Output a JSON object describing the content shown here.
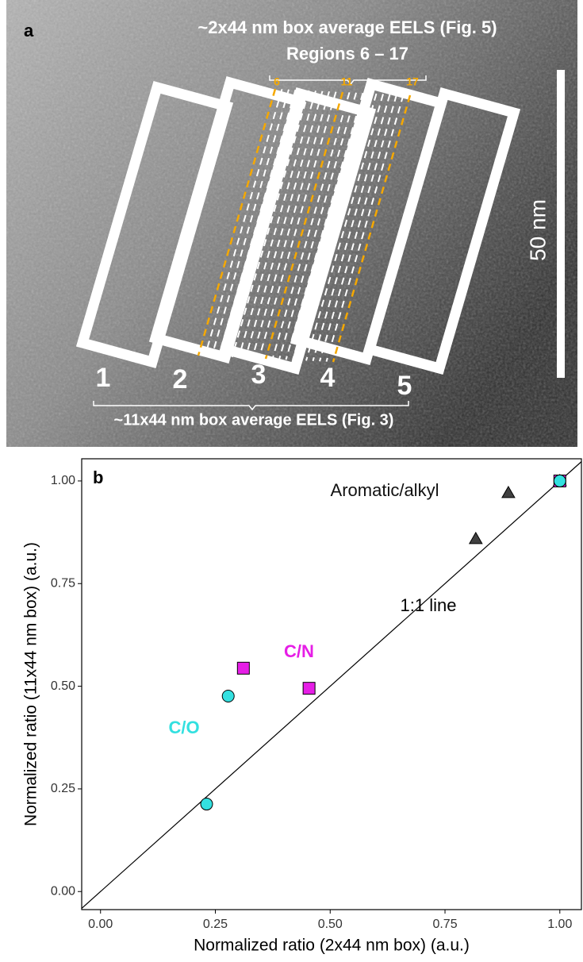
{
  "panel_a": {
    "label": "a",
    "top_caption": "~2x44 nm box average EELS (Fig. 5)",
    "top_subcaption": "Regions 6 – 17",
    "region_markers": [
      "6",
      "11",
      "17"
    ],
    "box_labels": [
      "1",
      "2",
      "3",
      "4",
      "5"
    ],
    "bottom_caption": "~11x44 nm box average EELS (Fig. 3)",
    "scale_bar": "50 nm"
  },
  "chart_data": {
    "type": "scatter",
    "label": "b",
    "xlabel": "Normalized ratio (2x44 nm box) (a.u.)",
    "ylabel": "Normalized ratio (11x44 nm box) (a.u.)",
    "xlim": [
      -0.041,
      1.047
    ],
    "ylim": [
      -0.044,
      1.054
    ],
    "xticks": [
      {
        "value": 0,
        "label": "0.00"
      },
      {
        "value": 0.25,
        "label": "0.25"
      },
      {
        "value": 0.5,
        "label": "0.50"
      },
      {
        "value": 0.75,
        "label": "0.75"
      },
      {
        "value": 1,
        "label": "1.00"
      }
    ],
    "yticks": [
      {
        "value": 0,
        "label": "0.00"
      },
      {
        "value": 0.25,
        "label": "0.25"
      },
      {
        "value": 0.5,
        "label": "0.50"
      },
      {
        "value": 0.75,
        "label": "0.75"
      },
      {
        "value": 1,
        "label": "1.00"
      }
    ],
    "reference_line_label": "1:1 line",
    "series": [
      {
        "name": "Aromatic/alkyl",
        "color": "#404040",
        "marker": "triangle",
        "x": [
          0.817,
          0.888,
          1.0
        ],
        "values": [
          0.859,
          0.971,
          1.0
        ]
      },
      {
        "name": "C/N",
        "color": "#e61ee6",
        "marker": "square",
        "x": [
          0.311,
          0.454,
          1.0
        ],
        "values": [
          0.544,
          0.495,
          1.0
        ]
      },
      {
        "name": "C/O",
        "color": "#33e0e0",
        "marker": "circle",
        "x": [
          0.231,
          0.278,
          1.0
        ],
        "values": [
          0.213,
          0.476,
          1.0
        ]
      }
    ]
  }
}
